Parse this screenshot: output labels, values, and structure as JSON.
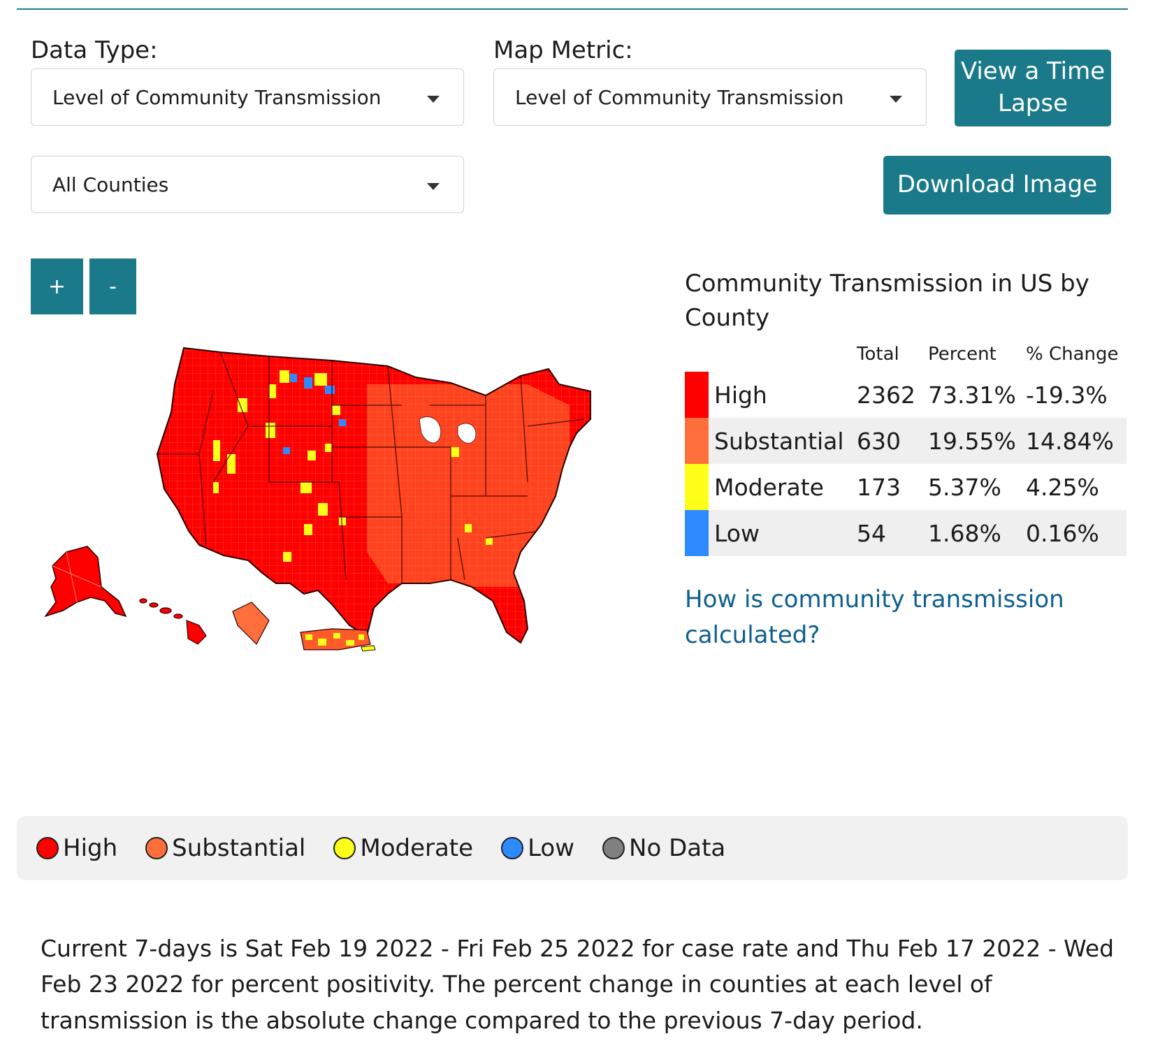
{
  "controls": {
    "data_type_label": "Data Type:",
    "data_type_value": "Level of Community Transmission",
    "map_metric_label": "Map Metric:",
    "map_metric_value": "Level of Community Transmission",
    "county_filter_value": "All Counties",
    "time_lapse_label_line1": "View a Time",
    "time_lapse_label_line2": "Lapse",
    "download_label": "Download Image",
    "zoom_in_label": "+",
    "zoom_out_label": "-"
  },
  "summary": {
    "title": "Community Transmission in US by County",
    "headers": {
      "total": "Total",
      "percent": "Percent",
      "change": "% Change"
    },
    "rows": [
      {
        "level": "High",
        "total": "2362",
        "percent": "73.31%",
        "change": "-19.3%",
        "color": "#ff0000"
      },
      {
        "level": "Substantial",
        "total": "630",
        "percent": "19.55%",
        "change": "14.84%",
        "color": "#ff6f3b"
      },
      {
        "level": "Moderate",
        "total": "173",
        "percent": "5.37%",
        "change": "4.25%",
        "color": "#ffff1a"
      },
      {
        "level": "Low",
        "total": "54",
        "percent": "1.68%",
        "change": "0.16%",
        "color": "#2d8bff"
      }
    ],
    "help_link": "How is community transmission calculated?"
  },
  "legend": [
    {
      "label": "High",
      "color": "#ff0000"
    },
    {
      "label": "Substantial",
      "color": "#ff6f3b"
    },
    {
      "label": "Moderate",
      "color": "#ffff1a"
    },
    {
      "label": "Low",
      "color": "#2d8bff"
    },
    {
      "label": "No Data",
      "color": "#808080"
    }
  ],
  "footnote": "Current 7-days is Sat Feb 19 2022 - Fri Feb 25 2022 for case rate and Thu Feb 17 2022 - Wed Feb 23 2022 for percent positivity. The percent change in counties at each level of transmission is the absolute change compared to the previous 7-day period."
}
